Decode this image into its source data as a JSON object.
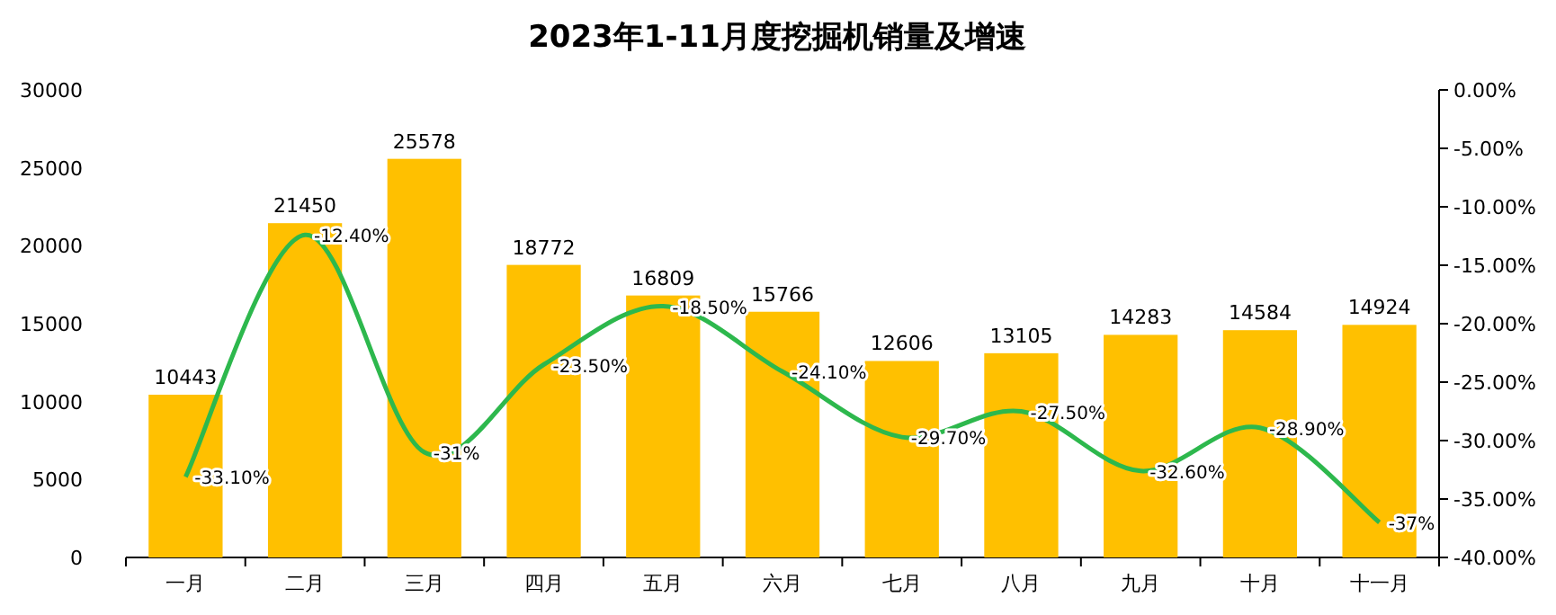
{
  "chart_data": {
    "type": "bar",
    "title": "2023年1-11月度挖掘机销量及增速",
    "categories": [
      "一月",
      "二月",
      "三月",
      "四月",
      "五月",
      "六月",
      "七月",
      "八月",
      "九月",
      "十月",
      "十一月"
    ],
    "series": [
      {
        "color": "#ffc000",
        "values": [
          10443,
          21450,
          25578,
          18772,
          16809,
          15766,
          12606,
          13105,
          14283,
          14584,
          14924
        ],
        "value_labels": [
          "10443",
          "21450",
          "25578",
          "18772",
          "16809",
          "15766",
          "12606",
          "13105",
          "14283",
          "14584",
          "14924"
        ]
      },
      {
        "type": "line",
        "axis": "y2",
        "color": "#2db84d",
        "values": [
          -33.1,
          -12.4,
          -31,
          -23.5,
          -18.5,
          -24.1,
          -29.7,
          -27.5,
          -32.6,
          -28.9,
          -37
        ],
        "value_labels": [
          "-33.10%",
          "-12.40%",
          "-31%",
          "-23.50%",
          "-18.50%",
          "-24.10%",
          "-29.70%",
          "-27.50%",
          "-32.60%",
          "-28.90%",
          "-37%"
        ]
      }
    ],
    "ylim": [
      0,
      30000
    ],
    "yticks": [
      0,
      5000,
      10000,
      15000,
      20000,
      25000,
      30000
    ],
    "y2lim": [
      -40,
      0
    ],
    "y2ticks": [
      {
        "value": 0,
        "label": "0.00%"
      },
      {
        "value": -5,
        "label": "-5.00%"
      },
      {
        "value": -10,
        "label": "-10.00%"
      },
      {
        "value": -15,
        "label": "-15.00%"
      },
      {
        "value": -20,
        "label": "-20.00%"
      },
      {
        "value": -25,
        "label": "-25.00%"
      },
      {
        "value": -30,
        "label": "-30.00%"
      },
      {
        "value": -35,
        "label": "-35.00%"
      },
      {
        "value": -40,
        "label": "-40.00%"
      }
    ],
    "grid": false,
    "marker": "none",
    "line_style": "solid"
  }
}
